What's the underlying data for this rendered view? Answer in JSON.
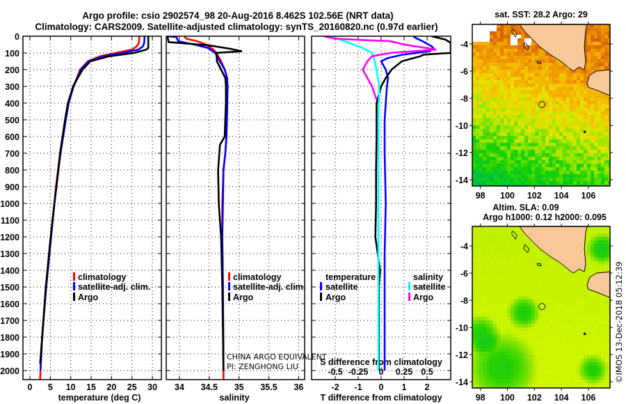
{
  "title": {
    "line1": "Argo profile: csio 2902574_98 20-Aug-2016 8.462S 102.56E (NRT data)",
    "line2": "Climatology: CARS2009. Satellite-adjusted climatology: synTS_20160820.nc (0.97d earlier)"
  },
  "colors": {
    "climatology": "#ff0000",
    "satellite": "#0000ff",
    "argo": "#000000",
    "salinity_satellite": "#00ffff",
    "salinity_argo": "#ff00ff",
    "land": "#f9c899"
  },
  "depth_ticks": [
    "0",
    "100",
    "200",
    "300",
    "400",
    "500",
    "600",
    "700",
    "800",
    "900",
    "1000",
    "1100",
    "1200",
    "1300",
    "1400",
    "1500",
    "1600",
    "1700",
    "1800",
    "1900",
    "2000"
  ],
  "chart_data": [
    {
      "type": "line",
      "name": "temperature-profile",
      "xlabel": "temperature (deg C)",
      "ylabel": "depth",
      "xlim": [
        -1.7,
        32.2
      ],
      "ylim": [
        2054,
        0
      ],
      "grid": true,
      "xticks": [
        0,
        5,
        10,
        15,
        20,
        25,
        30
      ],
      "xtick_labels": [
        "0",
        "5",
        "10",
        "15",
        "20",
        "25",
        "30"
      ],
      "legend": {
        "position": "middle-right",
        "items": [
          "climatology",
          "satellite-adj. clim.",
          "Argo"
        ]
      },
      "series": [
        {
          "name": "climatology",
          "color": "#ff0000",
          "depth": [
            0,
            40,
            60,
            80,
            100,
            120,
            150,
            200,
            250,
            300,
            400,
            500,
            700,
            900,
            1000,
            1200,
            1500,
            1800,
            2000,
            2054
          ],
          "values": [
            26.8,
            26.7,
            26.2,
            25.0,
            21.0,
            17.2,
            14.2,
            12.3,
            11.5,
            10.6,
            9.4,
            8.7,
            7.4,
            6.4,
            6.0,
            5.1,
            3.9,
            3.0,
            2.6,
            2.5
          ]
        },
        {
          "name": "satellite-adj. clim.",
          "color": "#0000ff",
          "depth": [
            0,
            40,
            60,
            80,
            100,
            120,
            150,
            200,
            250,
            300,
            400,
            500,
            700,
            900,
            1000,
            1200,
            1500,
            1800,
            2000
          ],
          "values": [
            28.1,
            28.0,
            27.7,
            26.6,
            22.8,
            18.0,
            14.4,
            12.5,
            11.6,
            10.7,
            9.5,
            8.8,
            7.5,
            6.5,
            6.0,
            5.2,
            4.0,
            3.0,
            2.6
          ]
        },
        {
          "name": "Argo",
          "color": "#000000",
          "depth": [
            0,
            70,
            80,
            100,
            120,
            150,
            200,
            250,
            300,
            400,
            500,
            700,
            900,
            1000,
            1200,
            1500,
            1800,
            1960
          ],
          "values": [
            29.0,
            29.0,
            28.5,
            25.5,
            19.4,
            14.8,
            12.9,
            11.7,
            10.6,
            9.3,
            8.6,
            7.4,
            6.5,
            6.0,
            5.1,
            3.9,
            3.0,
            2.5
          ]
        }
      ]
    },
    {
      "type": "line",
      "name": "salinity-profile",
      "xlabel": "salinity",
      "ylabel": "depth",
      "xlim": [
        33.78,
        36.1
      ],
      "ylim": [
        2054,
        0
      ],
      "grid": true,
      "xticks": [
        34,
        34.5,
        35,
        35.5,
        36
      ],
      "xtick_labels": [
        "34",
        "34.5",
        "35",
        "35.5",
        "36"
      ],
      "legend": {
        "position": "middle-right",
        "items": [
          "climatology",
          "satellite-adj. clim.",
          "Argo"
        ]
      },
      "annotation": [
        "CHINA ARGO EQUIVALENT",
        "PI: ZENGHONG LIU"
      ],
      "series": [
        {
          "name": "climatology",
          "color": "#ff0000",
          "depth": [
            0,
            15,
            30,
            50,
            80,
            100,
            150,
            200,
            250,
            300,
            450,
            600,
            700,
            800,
            1000,
            1200,
            1500,
            2000,
            2054
          ],
          "values": [
            34.08,
            34.12,
            34.3,
            34.45,
            34.57,
            34.62,
            34.7,
            34.76,
            34.8,
            34.8,
            34.8,
            34.79,
            34.77,
            34.74,
            34.72,
            34.72,
            34.73,
            34.74,
            34.74
          ]
        },
        {
          "name": "satellite-adj. clim.",
          "color": "#0000ff",
          "depth": [
            0,
            5,
            30,
            50,
            70,
            100,
            150,
            200,
            250,
            300,
            450,
            600,
            700,
            800,
            1000,
            1200,
            1500,
            2000
          ],
          "values": [
            33.8,
            33.95,
            33.98,
            34.25,
            34.48,
            34.6,
            34.68,
            34.76,
            34.8,
            34.81,
            34.8,
            34.79,
            34.77,
            34.74,
            34.73,
            34.72,
            34.73,
            34.74
          ]
        },
        {
          "name": "Argo",
          "color": "#000000",
          "depth": [
            0,
            35,
            55,
            75,
            90,
            100,
            150,
            200,
            250,
            300,
            400,
            500,
            600,
            650,
            800,
            1000,
            1200,
            1500,
            2000
          ],
          "values": [
            33.8,
            33.82,
            34.5,
            34.85,
            35.05,
            34.62,
            34.63,
            34.7,
            34.77,
            34.78,
            34.78,
            34.77,
            34.76,
            34.68,
            34.65,
            34.66,
            34.7,
            34.72,
            34.74
          ]
        }
      ]
    },
    {
      "type": "line",
      "name": "difference-profile",
      "xlabel": "T difference from climatology",
      "x2label": "S difference from climatology",
      "ylabel": "depth",
      "xlim": [
        -3.03,
        3.03
      ],
      "x2lim": [
        -0.7575,
        0.7575
      ],
      "ylim": [
        2054,
        0
      ],
      "grid": true,
      "xticks": [
        -2,
        -1,
        0,
        1,
        2
      ],
      "xtick_labels": [
        "-2",
        "-1",
        "0",
        "1",
        "2"
      ],
      "x2ticks": [
        -0.5,
        -0.25,
        0,
        0.25,
        0.5
      ],
      "x2tick_labels": [
        "-0.5",
        "-0.25",
        "0",
        "0.25",
        "0.5"
      ],
      "legend": {
        "position": "middle",
        "groups": [
          {
            "title": "temperature",
            "items": [
              "satellite",
              "Argo"
            ]
          },
          {
            "title": "salinity",
            "items": [
              "satellite",
              "Argo"
            ]
          }
        ]
      },
      "series": [
        {
          "name": "temperature satellite",
          "axis": "T",
          "color": "#0000ff",
          "depth": [
            0,
            10,
            30,
            60,
            75,
            90,
            110,
            130,
            150,
            200,
            250,
            300,
            400,
            500,
            700,
            1000,
            1300,
            1600,
            2000
          ],
          "values": [
            1.4,
            1.5,
            1.8,
            2.2,
            2.3,
            2.1,
            0.95,
            0.3,
            0.0,
            0.2,
            0.3,
            0.25,
            0.2,
            0.15,
            0.15,
            0.2,
            0.15,
            0.15,
            0.15
          ]
        },
        {
          "name": "temperature Argo",
          "axis": "T",
          "color": "#000000",
          "depth": [
            0,
            20,
            40,
            100,
            110,
            120,
            150,
            200,
            250,
            300,
            400,
            600,
            800,
            1000,
            1200,
            1400,
            1500,
            1700,
            2000
          ],
          "values": [
            2.2,
            2.8,
            3.03,
            3.03,
            1.85,
            1.7,
            0.9,
            0.45,
            0.2,
            0.0,
            -0.2,
            -0.2,
            -0.22,
            -0.22,
            -0.25,
            -0.05,
            -0.1,
            -0.1,
            -0.1
          ]
        },
        {
          "name": "salinity satellite",
          "axis": "S",
          "color": "#00ffff",
          "depth": [
            0,
            10,
            40,
            70,
            100,
            150,
            200,
            300,
            500,
            700,
            1000,
            1300,
            1600,
            2000
          ],
          "values": [
            -0.55,
            -0.5,
            -0.35,
            -0.2,
            -0.1,
            -0.07,
            -0.05,
            -0.02,
            -0.03,
            -0.03,
            -0.03,
            -0.03,
            -0.03,
            -0.03
          ]
        },
        {
          "name": "salinity Argo",
          "axis": "S",
          "color": "#ff00ff",
          "depth": [
            0,
            15,
            30,
            50,
            80,
            100,
            120,
            150,
            200,
            300,
            380
          ],
          "values": [
            -0.63,
            -0.5,
            0.1,
            0.25,
            0.6,
            0.1,
            -0.1,
            -0.15,
            -0.2,
            -0.1,
            -0.05
          ]
        }
      ]
    }
  ],
  "map_sst": {
    "title": "sat. SST: 28.2 Argo: 29",
    "lon_ticks": [
      "98",
      "100",
      "102",
      "104",
      "106"
    ],
    "lat_ticks": [
      "-4",
      "-6",
      "-8",
      "-10",
      "-12",
      "-14"
    ],
    "argo_lon": 102.56,
    "argo_lat": -8.462
  },
  "map_sla": {
    "title1": "Altim. SLA: 0.09",
    "title2": "Argo h1000: 0.12 h2000: 0.095",
    "lon_ticks": [
      "98",
      "100",
      "102",
      "104",
      "106"
    ],
    "lat_ticks": [
      "-4",
      "-6",
      "-8",
      "-10",
      "-12",
      "-14"
    ]
  },
  "credit": "©IMOS 13-Dec-2018 05:12:39"
}
